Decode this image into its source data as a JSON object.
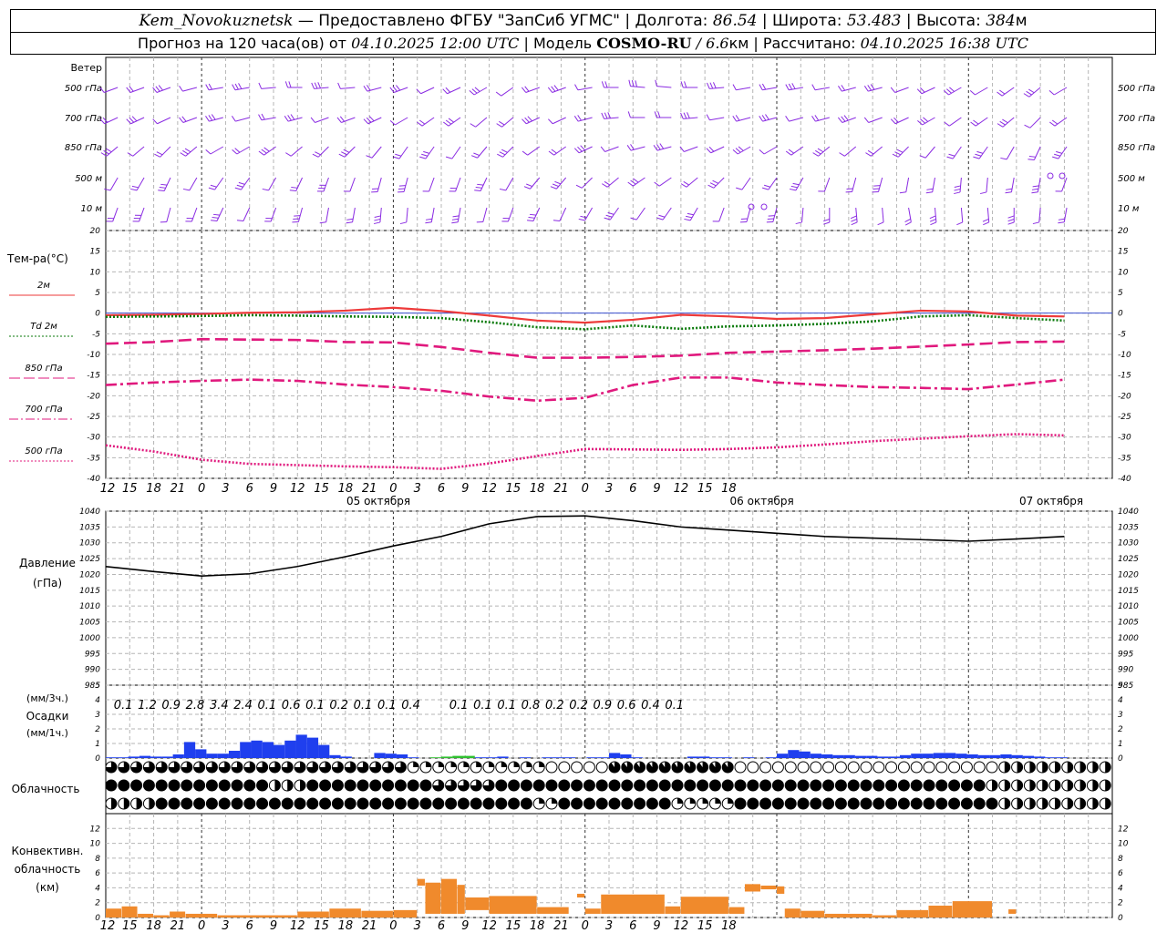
{
  "header": {
    "station": "Kem_Novokuznetsk",
    "provided_by": "— Предоставлено ФГБУ \"ЗапСиб УГМС\" |",
    "lon_label": "Долгота:",
    "lon": "86.54",
    "lat_label": "| Широта:",
    "lat": "53.483",
    "alt_label": "| Высота:",
    "alt": "384",
    "alt_unit": "м",
    "forecast_label": "Прогноз на 120 часа(ов) от",
    "forecast_from": "04.10.2025 12:00 UTC",
    "model_label": "| Модель",
    "model": "COSMO-RU",
    "resolution": "/ 6.6",
    "resolution_unit": "км",
    "calc_label": "| Рассчитано:",
    "calc_time": "04.10.2025 16:38 UTC"
  },
  "chart_data": [
    {
      "panel": "wind",
      "type": "other",
      "title": "Ветер",
      "levels": [
        "500 гПа",
        "700 гПа",
        "850 гПа",
        "500 м",
        "10 м"
      ],
      "wind_color": "#8a2be2"
    },
    {
      "panel": "temperature",
      "type": "line",
      "title": "Тем-ра(°С)",
      "ylim": [
        -40,
        20
      ],
      "yticks": [
        20,
        15,
        10,
        5,
        0,
        -5,
        -10,
        -15,
        -20,
        -25,
        -30,
        -35,
        -40
      ],
      "x_hours": [
        0,
        6,
        12,
        18,
        24,
        30,
        36,
        42,
        48,
        54,
        60,
        66,
        72,
        78,
        84,
        90,
        96,
        102,
        108,
        114,
        120
      ],
      "series": [
        {
          "name": "2м",
          "color": "#ee3a3a",
          "dash": "solid",
          "values": [
            -0.5,
            -0.4,
            -0.2,
            0.1,
            0.2,
            0.6,
            1.3,
            0.5,
            -0.6,
            -1.8,
            -2.3,
            -1.6,
            -0.4,
            -0.8,
            -1.4,
            -1.2,
            -0.3,
            0.6,
            0.4,
            -0.6,
            -0.8
          ]
        },
        {
          "name": "Td 2м",
          "color": "#0a7a0a",
          "dash": "dot",
          "values": [
            -0.9,
            -0.8,
            -0.7,
            -0.5,
            -0.6,
            -0.8,
            -0.9,
            -1.2,
            -2.2,
            -3.4,
            -3.9,
            -3.0,
            -3.8,
            -3.2,
            -3.0,
            -2.6,
            -2.0,
            -0.8,
            -0.5,
            -1.2,
            -1.8
          ]
        },
        {
          "name": "850 гПа",
          "color": "#e0197d",
          "dash": "longdash",
          "values": [
            -7.4,
            -7.0,
            -6.3,
            -6.4,
            -6.5,
            -7.0,
            -7.1,
            -8.2,
            -9.6,
            -10.8,
            -10.8,
            -10.6,
            -10.3,
            -9.6,
            -9.3,
            -9.0,
            -8.6,
            -8.1,
            -7.6,
            -7.0,
            -6.9
          ]
        },
        {
          "name": "700 гПа",
          "color": "#e0197d",
          "dash": "dashdot",
          "values": [
            -17.4,
            -16.8,
            -16.4,
            -16.1,
            -16.4,
            -17.3,
            -17.9,
            -18.8,
            -20.2,
            -21.2,
            -20.5,
            -17.4,
            -15.6,
            -15.6,
            -16.8,
            -17.4,
            -17.9,
            -18.1,
            -18.4,
            -17.3,
            -16.1
          ]
        },
        {
          "name": "500 гПа",
          "color": "#e0197d",
          "dash": "dot",
          "values": [
            -32.0,
            -33.5,
            -35.5,
            -36.5,
            -36.8,
            -37.1,
            -37.3,
            -37.7,
            -36.4,
            -34.6,
            -32.9,
            -33.0,
            -33.1,
            -32.9,
            -32.5,
            -31.8,
            -31.0,
            -30.4,
            -29.8,
            -29.3,
            -29.6
          ]
        }
      ],
      "x_tick_labels": [
        "12",
        "15",
        "18",
        "21",
        "0",
        "3",
        "6",
        "9",
        "12",
        "15",
        "18",
        "21",
        "0",
        "3",
        "6",
        "9",
        "12",
        "15",
        "18",
        "21",
        "0",
        "3",
        "6",
        "9",
        "12",
        "15",
        "18"
      ],
      "date_labels": [
        "05 октября",
        "06 октября",
        "07 октября"
      ]
    },
    {
      "panel": "pressure",
      "type": "line",
      "title": "Давление",
      "ylabel": "(гПа)",
      "ylim": [
        985,
        1040
      ],
      "yticks": [
        1040,
        1035,
        1030,
        1025,
        1020,
        1015,
        1010,
        1005,
        1000,
        995,
        990,
        985
      ],
      "x_hours": [
        0,
        6,
        12,
        18,
        24,
        30,
        36,
        42,
        48,
        54,
        60,
        66,
        72,
        78,
        84,
        90,
        96,
        102,
        108,
        114,
        120
      ],
      "series": [
        {
          "name": "Давление",
          "color": "#000000",
          "values": [
            1022.5,
            1020.9,
            1019.5,
            1020.2,
            1022.5,
            1025.6,
            1029.0,
            1032.0,
            1036.0,
            1038.3,
            1038.5,
            1037.0,
            1035.0,
            1034.0,
            1033.0,
            1032.0,
            1031.5,
            1031.0,
            1030.5,
            1031.2,
            1032.0
          ]
        }
      ]
    },
    {
      "panel": "precipitation",
      "type": "bar",
      "title": "Осадки",
      "ylabel_top": "(мм/3ч.)",
      "ylabel": "(мм/1ч.)",
      "ylim": [
        0,
        5
      ],
      "yticks": [
        5,
        4,
        3,
        2,
        1,
        0
      ],
      "totals_3h": [
        "0.1",
        "1.2",
        "0.9",
        "2.8",
        "3.4",
        "2.4",
        "0.1",
        "0.6",
        "0.1",
        "0.2",
        "0.1",
        "0.1",
        "0.4",
        "",
        "0.1",
        "0.1",
        "0.1",
        "0.8",
        "0.2",
        "0.2",
        "0.9",
        "0.6",
        "0.4",
        "0.1",
        "",
        "",
        ""
      ],
      "hourly_mm": [
        0.05,
        0.05,
        0.1,
        0.15,
        0.1,
        0.1,
        0.25,
        1.1,
        0.6,
        0.3,
        0.3,
        0.5,
        1.1,
        1.2,
        1.1,
        0.9,
        1.2,
        1.6,
        1.4,
        0.9,
        0.2,
        0.1,
        0,
        0,
        0.35,
        0.3,
        0.25,
        0.05,
        0,
        0.05,
        0.1,
        0.15,
        0.15,
        0.05,
        0.05,
        0.1,
        0,
        0.05,
        0,
        0.05,
        0.05,
        0.05,
        0,
        0.05,
        0.05,
        0.35,
        0.25,
        0.05,
        0,
        0,
        0,
        0,
        0.1,
        0.1,
        0.05,
        0.05,
        0,
        0.05,
        0,
        0.05,
        0.3,
        0.55,
        0.45,
        0.3,
        0.25,
        0.2,
        0.2,
        0.15,
        0.15,
        0.1,
        0.1,
        0.2,
        0.3,
        0.3,
        0.35,
        0.35,
        0.3,
        0.25,
        0.2,
        0.2,
        0.25,
        0.2,
        0.15,
        0.1,
        0.05,
        0.05,
        0,
        0,
        0,
        0,
        0
      ],
      "bar_colors": {
        "rain": "#1f3fee",
        "mixed": "#2fbf2f"
      }
    },
    {
      "panel": "cloudiness",
      "type": "other",
      "title": "Облачность",
      "rows": [
        "high",
        "middle",
        "low"
      ]
    },
    {
      "panel": "convective",
      "type": "bar",
      "title": "Конвективн.",
      "title2": "облачность",
      "ylabel": "(км)",
      "ylim": [
        0,
        14
      ],
      "yticks": [
        12,
        10,
        8,
        6,
        4,
        2,
        0
      ],
      "bar_color": "#f08a2c",
      "segments": [
        {
          "from": 0,
          "to": 2,
          "base": 0,
          "top": 1.2
        },
        {
          "from": 2,
          "to": 4,
          "base": 0,
          "top": 1.5
        },
        {
          "from": 4,
          "to": 6,
          "base": 0,
          "top": 0.5
        },
        {
          "from": 6,
          "to": 8,
          "base": 0,
          "top": 0.3
        },
        {
          "from": 8,
          "to": 10,
          "base": 0,
          "top": 0.8
        },
        {
          "from": 10,
          "to": 14,
          "base": 0,
          "top": 0.5
        },
        {
          "from": 14,
          "to": 24,
          "base": 0,
          "top": 0.3
        },
        {
          "from": 24,
          "to": 28,
          "base": 0,
          "top": 0.8
        },
        {
          "from": 28,
          "to": 32,
          "base": 0,
          "top": 1.2
        },
        {
          "from": 32,
          "to": 36,
          "base": 0,
          "top": 0.9
        },
        {
          "from": 36,
          "to": 39,
          "base": 0,
          "top": 1.0
        },
        {
          "from": 39,
          "to": 40,
          "base": 4.3,
          "top": 5.2
        },
        {
          "from": 40,
          "to": 42,
          "base": 0.5,
          "top": 4.7
        },
        {
          "from": 42,
          "to": 44,
          "base": 0.5,
          "top": 5.2
        },
        {
          "from": 44,
          "to": 45,
          "base": 0.5,
          "top": 4.4
        },
        {
          "from": 45,
          "to": 48,
          "base": 1.0,
          "top": 2.7
        },
        {
          "from": 48,
          "to": 54,
          "base": 0.5,
          "top": 2.9
        },
        {
          "from": 54,
          "to": 58,
          "base": 0.5,
          "top": 1.4
        },
        {
          "from": 59,
          "to": 60,
          "base": 2.7,
          "top": 3.2
        },
        {
          "from": 60,
          "to": 62,
          "base": 0.5,
          "top": 1.2
        },
        {
          "from": 62,
          "to": 70,
          "base": 0.5,
          "top": 3.1
        },
        {
          "from": 70,
          "to": 72,
          "base": 0.5,
          "top": 1.5
        },
        {
          "from": 72,
          "to": 78,
          "base": 0.5,
          "top": 2.8
        },
        {
          "from": 78,
          "to": 80,
          "base": 0.5,
          "top": 1.4
        },
        {
          "from": 80,
          "to": 82,
          "base": 3.5,
          "top": 4.5
        },
        {
          "from": 82,
          "to": 84,
          "base": 3.8,
          "top": 4.3
        },
        {
          "from": 84,
          "to": 85,
          "base": 3.2,
          "top": 4.2
        },
        {
          "from": 85,
          "to": 87,
          "base": 0,
          "top": 1.2
        },
        {
          "from": 87,
          "to": 90,
          "base": 0,
          "top": 0.9
        },
        {
          "from": 90,
          "to": 96,
          "base": 0,
          "top": 0.5
        },
        {
          "from": 96,
          "to": 99,
          "base": 0,
          "top": 0.3
        },
        {
          "from": 99,
          "to": 103,
          "base": 0,
          "top": 1.0
        },
        {
          "from": 103,
          "to": 106,
          "base": 0,
          "top": 1.6
        },
        {
          "from": 106,
          "to": 111,
          "base": 0,
          "top": 2.2
        },
        {
          "from": 113,
          "to": 114,
          "base": 0.5,
          "top": 1.1
        }
      ]
    }
  ]
}
